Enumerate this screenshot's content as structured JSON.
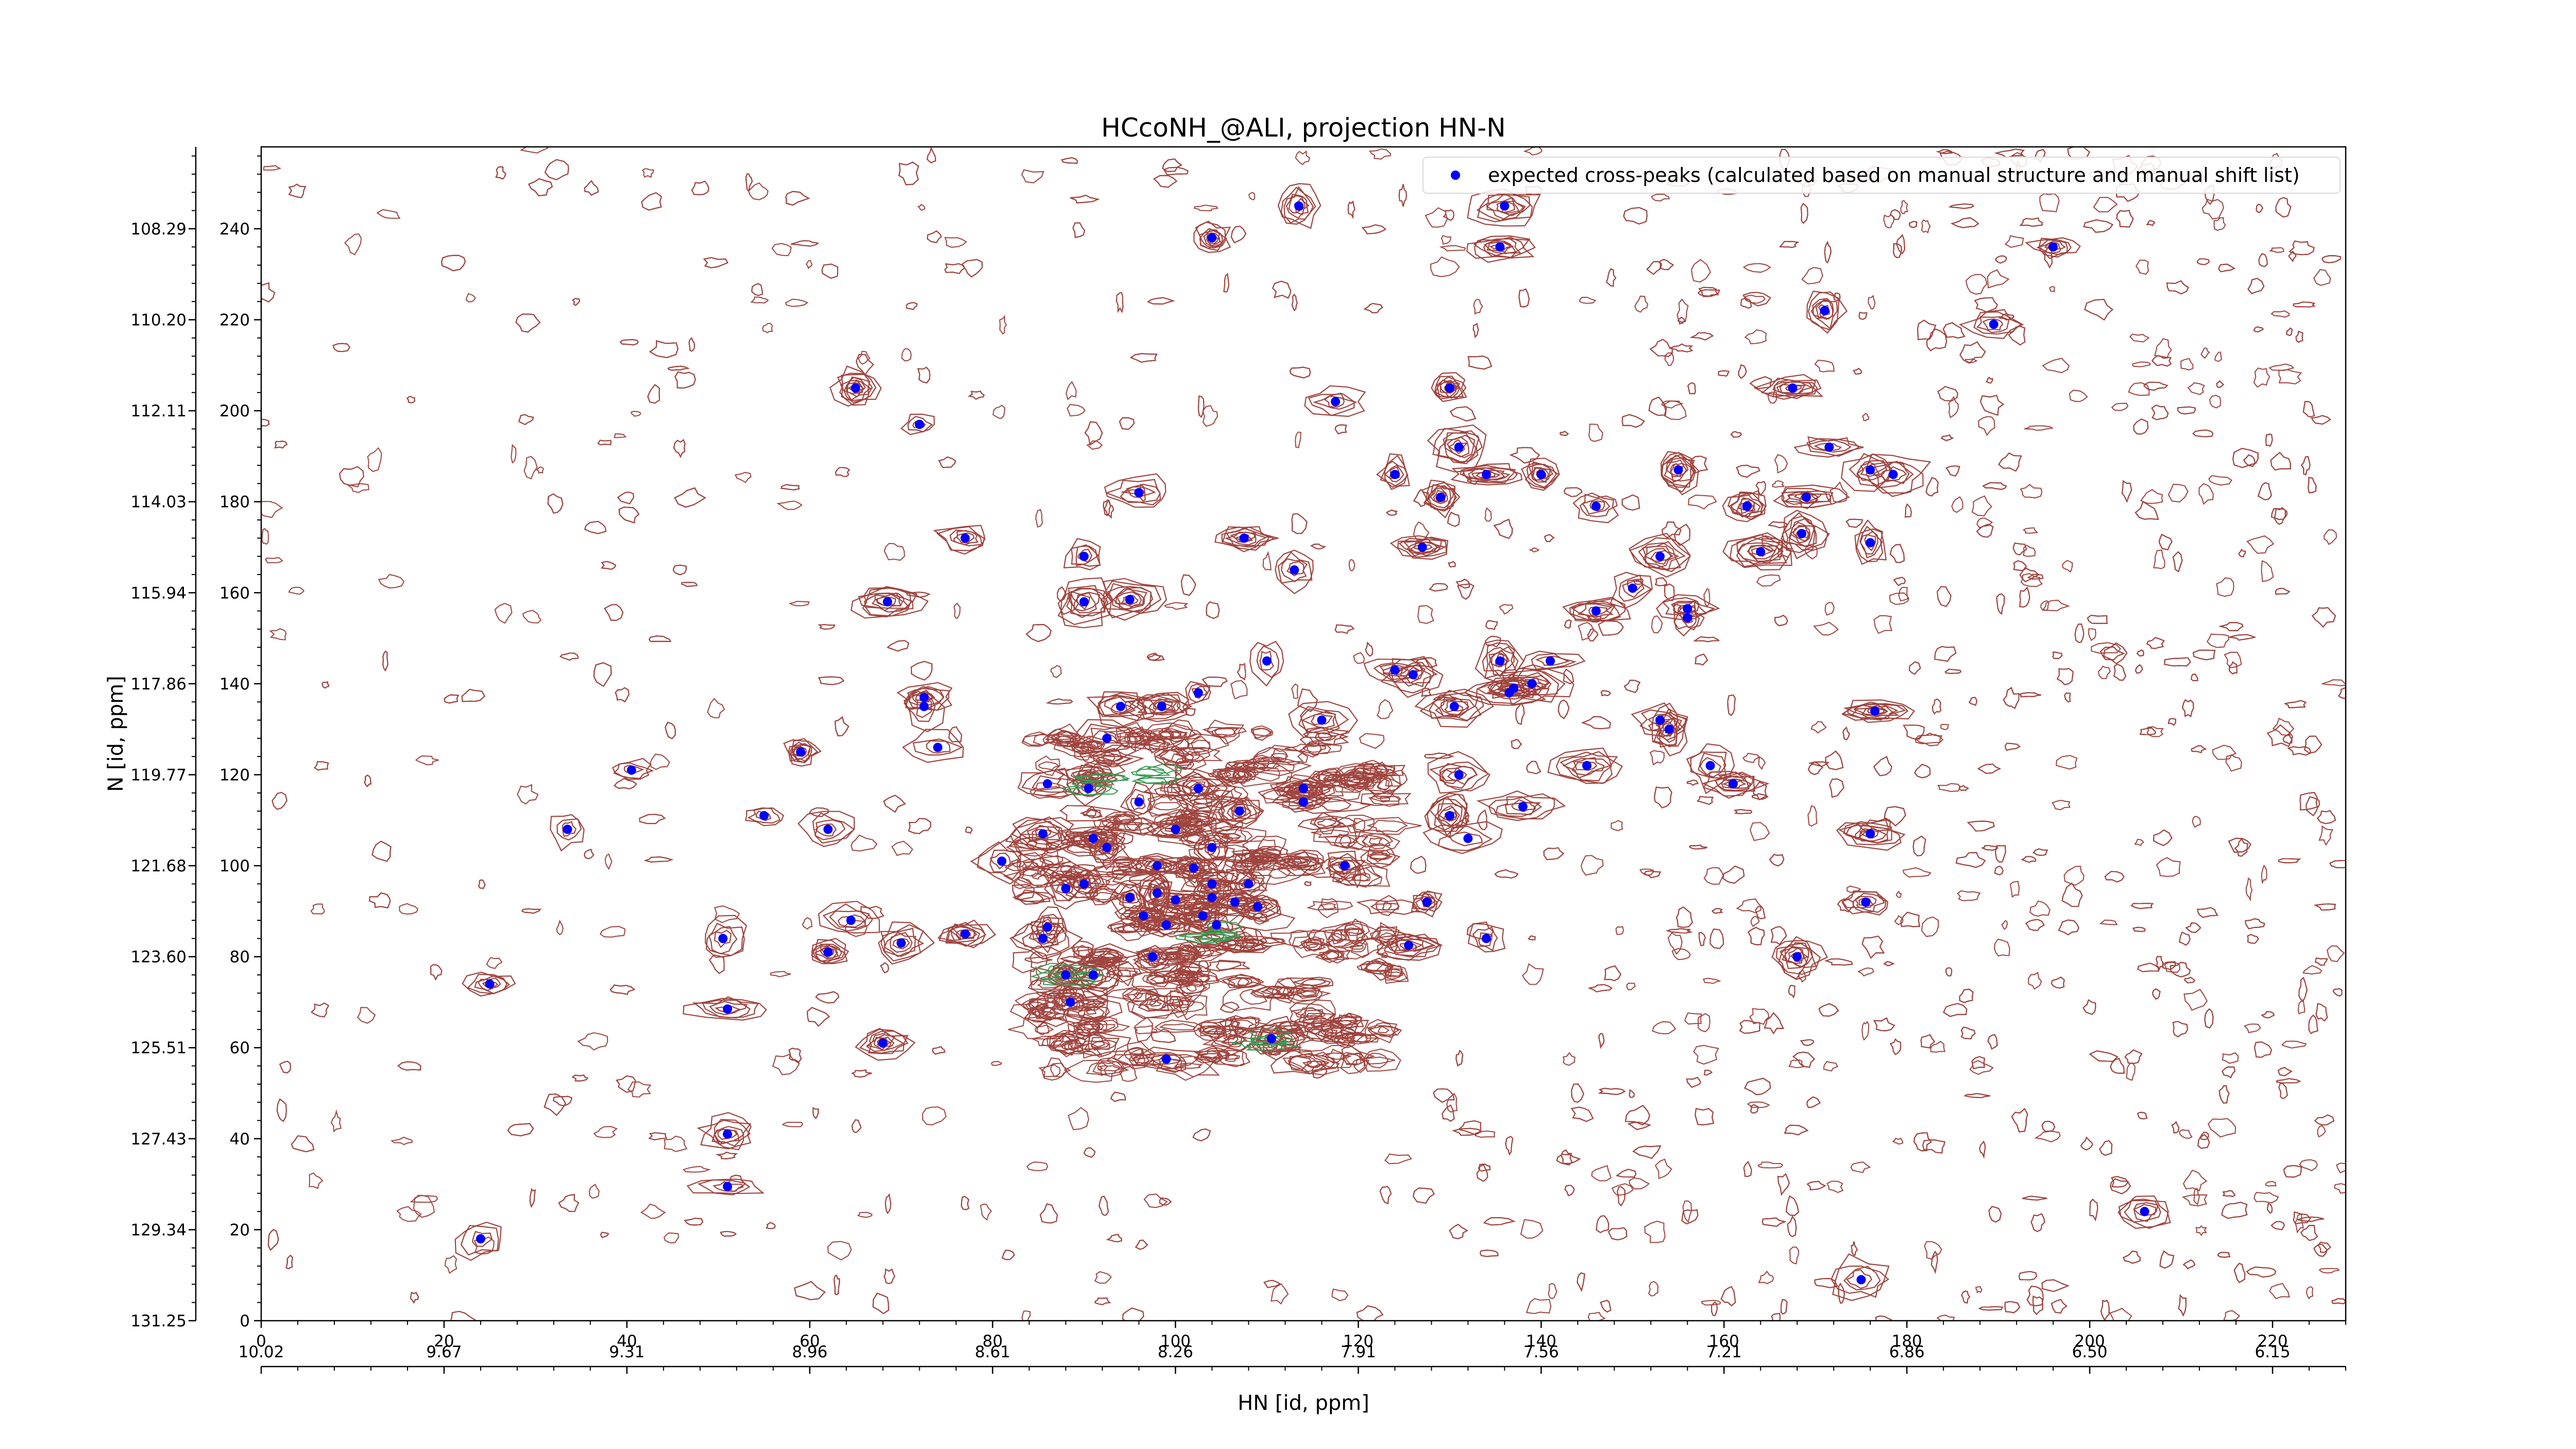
{
  "chart_data": {
    "type": "scatter",
    "title": "HCcoNH_@ALI, projection HN-N",
    "xlabel": "HN [id, ppm]",
    "ylabel": "N [id, ppm]",
    "xlim": [
      0,
      228
    ],
    "ylim": [
      0,
      258
    ],
    "grid": false,
    "legend_position": "top-right",
    "x_ticks": [
      0,
      20,
      40,
      60,
      80,
      100,
      120,
      140,
      160,
      180,
      200,
      220
    ],
    "y_ticks": [
      0,
      20,
      40,
      60,
      80,
      100,
      120,
      140,
      160,
      180,
      200,
      220,
      240
    ],
    "y_ppm_labels": [
      "131.25",
      "129.34",
      "127.43",
      "125.51",
      "123.60",
      "121.68",
      "119.77",
      "117.86",
      "115.94",
      "114.03",
      "112.11",
      "110.20",
      "108.29"
    ],
    "x_ppm_labels": [
      "10.02",
      "9.67",
      "9.31",
      "8.96",
      "8.61",
      "8.26",
      "7.91",
      "7.56",
      "7.21",
      "6.86",
      "6.50",
      "6.15"
    ],
    "colors": {
      "peaks": "#0000ff",
      "contour_positive": "#a0453f",
      "contour_negative": "#3a9a55"
    },
    "series": [
      {
        "name": "expected cross-peaks (calculated based on manual structure and manual shift list)",
        "color": "#0000ff",
        "points": [
          [
            113.5,
            245
          ],
          [
            136,
            245
          ],
          [
            104,
            238
          ],
          [
            135.5,
            236
          ],
          [
            196,
            236
          ],
          [
            171,
            222
          ],
          [
            189.5,
            219
          ],
          [
            65,
            205
          ],
          [
            130,
            205
          ],
          [
            167.5,
            205
          ],
          [
            117.5,
            202
          ],
          [
            72,
            197
          ],
          [
            131,
            192
          ],
          [
            171.5,
            192
          ],
          [
            124,
            186
          ],
          [
            134,
            186
          ],
          [
            140,
            186
          ],
          [
            155,
            187
          ],
          [
            176,
            187
          ],
          [
            178.5,
            186
          ],
          [
            96,
            182
          ],
          [
            169,
            181
          ],
          [
            129,
            181
          ],
          [
            146,
            179
          ],
          [
            162.5,
            179
          ],
          [
            77,
            172
          ],
          [
            107.5,
            172
          ],
          [
            127,
            170
          ],
          [
            168.5,
            173
          ],
          [
            176,
            171
          ],
          [
            164,
            169
          ],
          [
            90,
            168
          ],
          [
            153,
            168
          ],
          [
            113,
            165
          ],
          [
            150,
            161
          ],
          [
            68.5,
            158
          ],
          [
            90,
            158
          ],
          [
            95,
            158.5
          ],
          [
            146,
            156
          ],
          [
            156,
            156.5
          ],
          [
            156,
            154.5
          ],
          [
            110,
            145
          ],
          [
            124,
            143
          ],
          [
            135.5,
            145
          ],
          [
            141,
            145
          ],
          [
            126,
            142
          ],
          [
            139,
            140
          ],
          [
            137,
            139
          ],
          [
            136.5,
            138
          ],
          [
            102.5,
            138
          ],
          [
            72.5,
            137
          ],
          [
            72.5,
            135
          ],
          [
            94,
            135
          ],
          [
            98.5,
            135
          ],
          [
            130.5,
            135
          ],
          [
            176.5,
            134
          ],
          [
            116,
            132
          ],
          [
            153,
            132
          ],
          [
            154,
            130
          ],
          [
            92.5,
            128
          ],
          [
            74,
            126
          ],
          [
            59,
            125
          ],
          [
            40.5,
            121
          ],
          [
            86,
            118
          ],
          [
            107,
            112
          ],
          [
            114,
            114
          ],
          [
            90.5,
            117
          ],
          [
            114,
            117
          ],
          [
            102.5,
            117
          ],
          [
            131,
            120
          ],
          [
            145,
            122
          ],
          [
            158.5,
            122
          ],
          [
            130,
            111
          ],
          [
            138,
            113
          ],
          [
            161,
            118
          ],
          [
            96,
            114
          ],
          [
            55,
            111
          ],
          [
            62,
            108
          ],
          [
            33.5,
            108
          ],
          [
            100,
            108
          ],
          [
            132,
            106
          ],
          [
            176,
            107
          ],
          [
            85.5,
            107
          ],
          [
            91,
            106
          ],
          [
            92.5,
            104
          ],
          [
            104,
            104
          ],
          [
            81,
            101
          ],
          [
            98,
            100
          ],
          [
            102,
            99.5
          ],
          [
            118.5,
            100
          ],
          [
            90,
            96
          ],
          [
            98,
            94
          ],
          [
            104,
            96
          ],
          [
            104,
            93
          ],
          [
            100,
            92.5
          ],
          [
            106.5,
            92
          ],
          [
            95,
            93
          ],
          [
            96.5,
            89
          ],
          [
            108,
            96
          ],
          [
            99,
            87
          ],
          [
            104.5,
            87
          ],
          [
            103,
            89
          ],
          [
            88,
            95
          ],
          [
            127.5,
            92
          ],
          [
            109,
            91
          ],
          [
            86,
            86.5
          ],
          [
            64.5,
            88
          ],
          [
            168,
            80
          ],
          [
            77,
            85
          ],
          [
            134,
            84
          ],
          [
            50.5,
            84
          ],
          [
            85.5,
            84
          ],
          [
            70,
            83
          ],
          [
            62,
            81
          ],
          [
            97.5,
            80
          ],
          [
            125.5,
            82.5
          ],
          [
            175.5,
            92
          ],
          [
            88,
            76
          ],
          [
            91,
            76
          ],
          [
            25,
            74
          ],
          [
            51,
            68.5
          ],
          [
            88.5,
            70
          ],
          [
            110.5,
            62
          ],
          [
            68,
            61
          ],
          [
            99,
            57.5
          ],
          [
            51,
            41
          ],
          [
            51,
            29.5
          ],
          [
            24,
            18
          ],
          [
            206,
            24
          ],
          [
            175,
            9
          ]
        ]
      }
    ]
  }
}
